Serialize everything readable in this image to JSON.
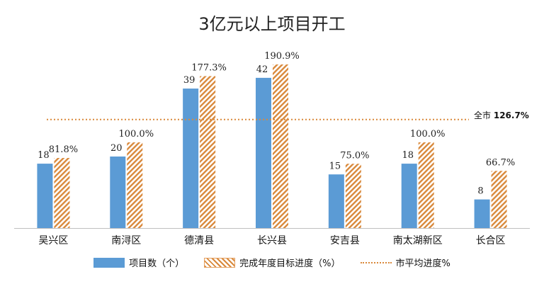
{
  "title": "3亿元以上项目开工",
  "avg_label_prefix": "全市",
  "avg_label_value": "126.7%",
  "legend": {
    "series1": "项目数（个）",
    "series2": "完成年度目标进度（%）",
    "avg": "市平均进度%"
  },
  "colors": {
    "blue": "#5b9bd5",
    "orange": "#d9893b"
  },
  "chart_data": {
    "type": "bar",
    "categories": [
      "吴兴区",
      "南浔区",
      "德清县",
      "长兴县",
      "安吉县",
      "南太湖新区",
      "长合区"
    ],
    "series": [
      {
        "name": "项目数（个）",
        "values": [
          18,
          20,
          39,
          42,
          15,
          18,
          8
        ],
        "labels": [
          "18",
          "20",
          "39",
          "42",
          "15",
          "18",
          "8"
        ]
      },
      {
        "name": "完成年度目标进度（%）",
        "values": [
          81.8,
          100.0,
          177.3,
          190.9,
          75.0,
          100.0,
          66.7
        ],
        "labels": [
          "81.8%",
          "100.0%",
          "177.3%",
          "190.9%",
          "75.0%",
          "100.0%",
          "66.7%"
        ]
      }
    ],
    "reference_line": {
      "name": "市平均进度%",
      "value": 126.7
    },
    "ylim": [
      0,
      210
    ],
    "grid": false,
    "legend_position": "bottom"
  }
}
